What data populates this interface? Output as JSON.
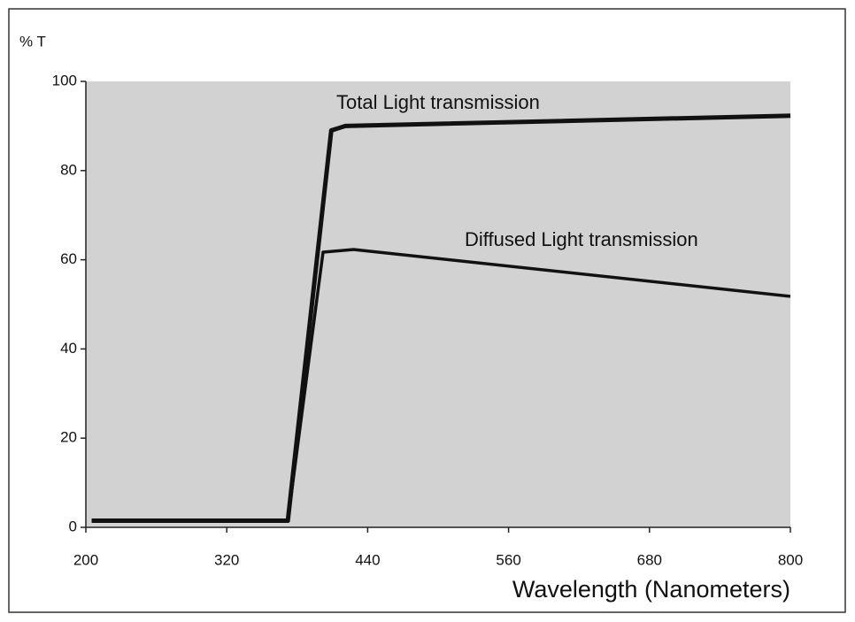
{
  "chart_data": {
    "type": "line",
    "y_label": "% T",
    "x_label": "Wavelength (Nanometers)",
    "annotations": [
      "Total Light transmission",
      "Diffused Light transmission"
    ],
    "xlim": [
      200,
      800
    ],
    "xticks": [
      200,
      320,
      440,
      560,
      680,
      800
    ],
    "ylim": [
      0,
      100
    ],
    "yticks": [
      0,
      20,
      40,
      60,
      80,
      100
    ],
    "series": [
      {
        "name": "Total Light transmission",
        "color": "#111111",
        "x": [
          205,
          372,
          409,
          421,
          800
        ],
        "values": [
          1.5,
          1.5,
          89,
          90,
          92.3
        ]
      },
      {
        "name": "Diffused Light transmission",
        "color": "#111111",
        "x": [
          205,
          372,
          402,
          428,
          800
        ],
        "values": [
          1.5,
          1.5,
          61.7,
          62.3,
          51.8
        ]
      }
    ]
  }
}
